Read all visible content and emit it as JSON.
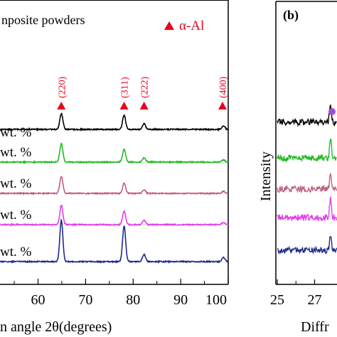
{
  "panel_a": {
    "title_fragment": "nposite powders",
    "legend_text": "α-Al",
    "x_label_fragment": "n angle 2θ(degrees)",
    "accent_color": "#e8001c"
  },
  "panel_b": {
    "label": "(b)",
    "y_label": "Intensity",
    "x_label_fragment": "Diffr",
    "marker_color": "#a64ad9"
  },
  "chart_data": [
    {
      "type": "line",
      "panel": "a",
      "xlabel": "n angle 2θ(degrees)",
      "xlim": [
        52,
        100
      ],
      "x_ticks": [
        60,
        70,
        80,
        90,
        100
      ],
      "legend": {
        "marker": "triangle",
        "label": "α-Al",
        "position": "top-right"
      },
      "peak_markers": [
        {
          "x": 64.9,
          "label": "(220)"
        },
        {
          "x": 78.1,
          "label": "(311)"
        },
        {
          "x": 82.3,
          "label": "(222)"
        },
        {
          "x": 98.8,
          "label": "(400)"
        }
      ],
      "series": [
        {
          "label": "wt. %",
          "color": "#000000",
          "peaks": [
            {
              "x": 64.9,
              "h": 22
            },
            {
              "x": 78.1,
              "h": 20
            },
            {
              "x": 82.3,
              "h": 8
            },
            {
              "x": 99.0,
              "h": 5
            }
          ]
        },
        {
          "label": "wt. %",
          "color": "#22bb22",
          "peaks": [
            {
              "x": 64.9,
              "h": 26
            },
            {
              "x": 78.1,
              "h": 18
            },
            {
              "x": 82.3,
              "h": 6
            },
            {
              "x": 99.0,
              "h": 3
            }
          ]
        },
        {
          "label": "wt. %",
          "color": "#c0607a",
          "peaks": [
            {
              "x": 64.9,
              "h": 24
            },
            {
              "x": 78.1,
              "h": 14
            },
            {
              "x": 82.3,
              "h": 5
            },
            {
              "x": 99.0,
              "h": 3
            }
          ]
        },
        {
          "label": "wt. %",
          "color": "#e040e8",
          "peaks": [
            {
              "x": 64.9,
              "h": 27
            },
            {
              "x": 78.1,
              "h": 19
            },
            {
              "x": 82.3,
              "h": 6
            },
            {
              "x": 99.0,
              "h": 3
            }
          ]
        },
        {
          "label": "wt. %",
          "color": "#1f2a8c",
          "peaks": [
            {
              "x": 64.9,
              "h": 58
            },
            {
              "x": 78.1,
              "h": 50
            },
            {
              "x": 82.3,
              "h": 10
            },
            {
              "x": 99.0,
              "h": 6
            }
          ]
        }
      ]
    },
    {
      "type": "line",
      "panel": "b",
      "xlabel": "Diffr",
      "ylabel": "Intensity",
      "xlim": [
        25,
        28.2
      ],
      "x_ticks": [
        25,
        27
      ],
      "series": [
        {
          "color": "#000000"
        },
        {
          "color": "#22bb22"
        },
        {
          "color": "#c0607a"
        },
        {
          "color": "#e040e8"
        },
        {
          "color": "#1f2a8c"
        }
      ]
    }
  ]
}
